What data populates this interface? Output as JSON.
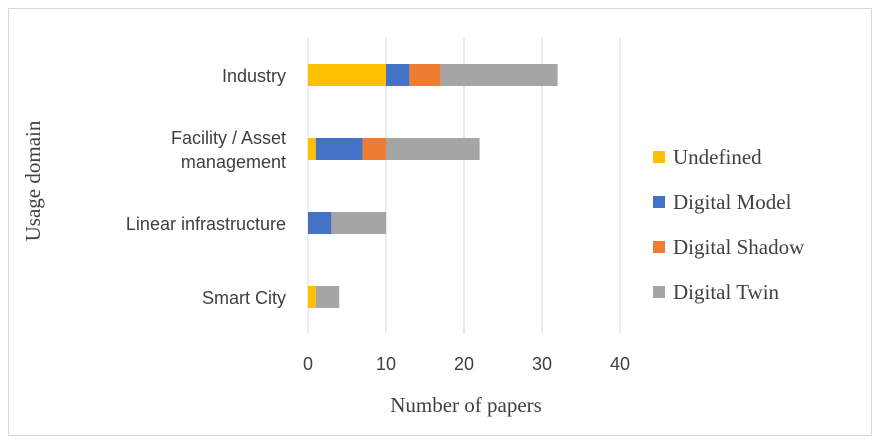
{
  "chart_data": {
    "type": "bar",
    "orientation": "horizontal",
    "stacked": true,
    "title": "",
    "xlabel": "Number of papers",
    "ylabel": "Usage domain",
    "xlim": [
      0,
      40
    ],
    "x_ticks": [
      0,
      10,
      20,
      30,
      40
    ],
    "grid": "vertical",
    "legend_position": "right",
    "categories": [
      "Industry",
      "Facility / Asset management",
      "Linear infrastructure",
      "Smart City"
    ],
    "category_label_lines": [
      [
        "Industry"
      ],
      [
        "Facility / Asset",
        "management"
      ],
      [
        "Linear infrastructure"
      ],
      [
        "Smart City"
      ]
    ],
    "series": [
      {
        "name": "Undefined",
        "color": "#ffc000",
        "values": [
          10,
          1,
          0,
          1
        ]
      },
      {
        "name": "Digital Model",
        "color": "#4472c4",
        "values": [
          3,
          6,
          3,
          0
        ]
      },
      {
        "name": "Digital Shadow",
        "color": "#ed7d31",
        "values": [
          4,
          3,
          0,
          0
        ]
      },
      {
        "name": "Digital Twin",
        "color": "#a5a5a5",
        "values": [
          15,
          12,
          7,
          3
        ]
      }
    ]
  }
}
